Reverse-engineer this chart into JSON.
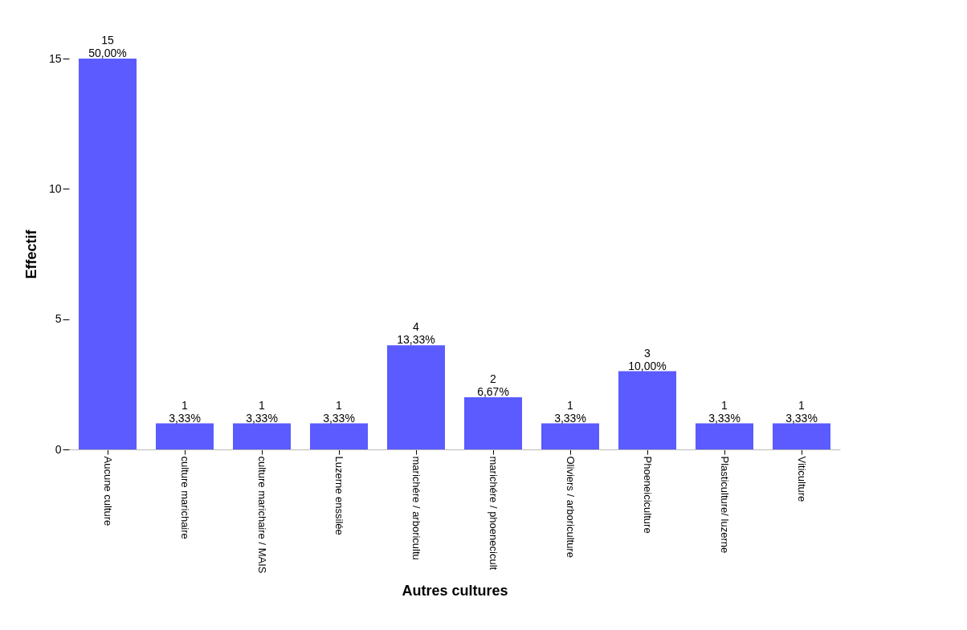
{
  "chart_data": {
    "type": "bar",
    "xlabel": "Autres cultures",
    "ylabel": "Effectif",
    "categories": [
      "Aucune culture",
      "culture marichaire",
      "culture marichaire / MAIS",
      "Luzerne enssilée",
      "marichére / arboricultu",
      "marichére / phoenecicult",
      "Oliviers / arboriculture",
      "Phoeneiciculture",
      "Plasticulture/ luzerne",
      "Viticulture"
    ],
    "values": [
      15,
      1,
      1,
      1,
      4,
      2,
      1,
      3,
      1,
      1
    ],
    "value_labels": [
      "15\n50,00%",
      "1\n3,33%",
      "1\n3,33%",
      "1\n3,33%",
      "4\n13,33%",
      "2\n6,67%",
      "1\n3,33%",
      "3\n10,00%",
      "1\n3,33%",
      "1\n3,33%"
    ],
    "color": "#5b5bff",
    "ylim": [
      0,
      15
    ],
    "yticks": [
      0,
      5,
      10,
      15
    ],
    "grid": false
  }
}
